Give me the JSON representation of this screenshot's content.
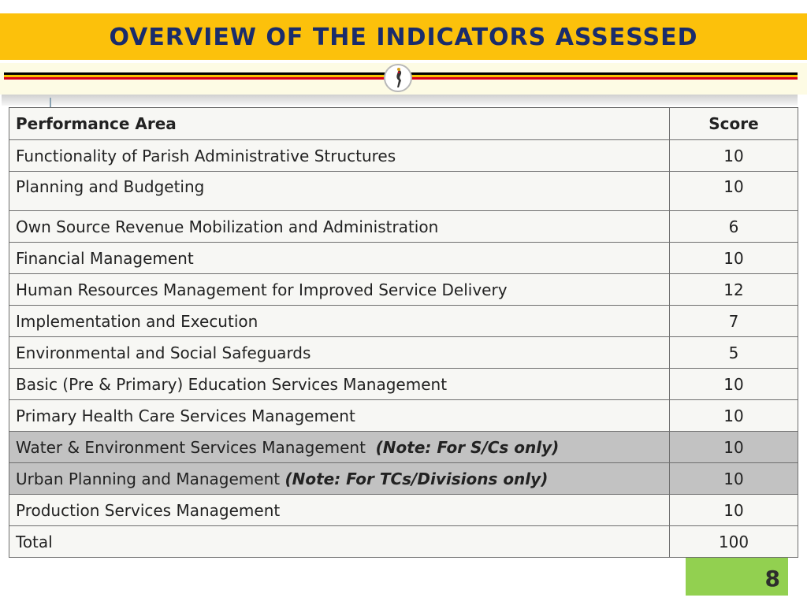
{
  "header": {
    "title": "OVERVIEW OF THE INDICATORS ASSESSED"
  },
  "table": {
    "columns": [
      "Performance Area",
      "Score"
    ],
    "rows": [
      {
        "area": "Functionality of Parish Administrative Structures",
        "note": "",
        "score": "10"
      },
      {
        "area": "Planning and Budgeting",
        "note": "",
        "score": "10"
      },
      {
        "area": "Own Source Revenue Mobilization and Administration",
        "note": "",
        "score": "6"
      },
      {
        "area": "Financial Management",
        "note": "",
        "score": "10"
      },
      {
        "area": "Human Resources Management for Improved Service Delivery",
        "note": "",
        "score": "12"
      },
      {
        "area": "Implementation and Execution",
        "note": "",
        "score": "7"
      },
      {
        "area": "Environmental and Social Safeguards",
        "note": "",
        "score": "5"
      },
      {
        "area": "Basic (Pre & Primary) Education Services Management",
        "note": "",
        "score": "10"
      },
      {
        "area": "Primary Health Care Services Management",
        "note": "",
        "score": "10"
      },
      {
        "area": "Water & Environment Services Management",
        "note": "(Note: For S/Cs only)",
        "score": "10"
      },
      {
        "area": "Urban Planning and Management",
        "note": "(Note: For TCs/Divisions only)",
        "score": "10"
      },
      {
        "area": "Production Services Management",
        "note": "",
        "score": "10"
      },
      {
        "area": "Total",
        "note": "",
        "score": "100"
      }
    ]
  },
  "colors": {
    "title_bar": "#fcc10b",
    "title_text": "#1a2c6b",
    "highlight_row": "#c2c2c2",
    "page_box": "#92d050"
  },
  "footer": {
    "page_number": "8"
  }
}
